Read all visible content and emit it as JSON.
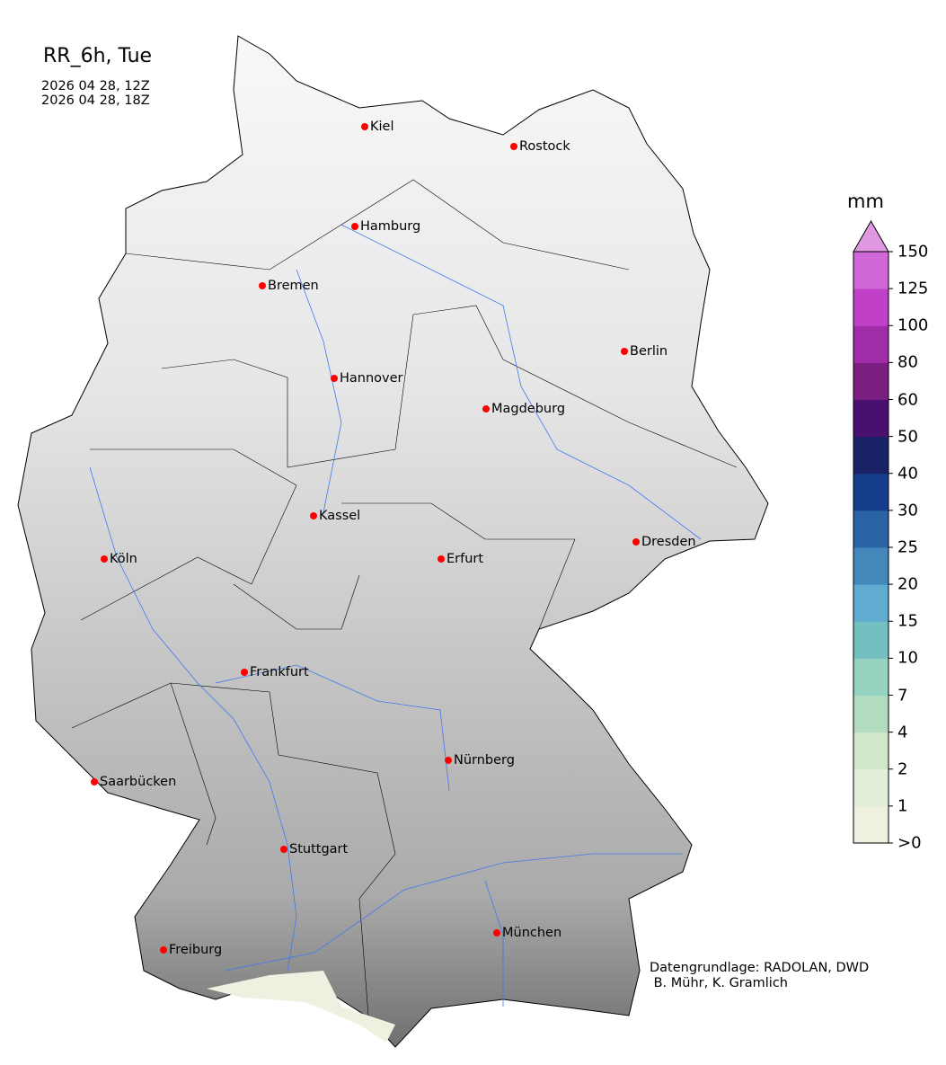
{
  "title": "RR_6h, Tue",
  "valid_start": "2026 04 28, 12Z",
  "valid_end": "2026 04 28, 18Z",
  "colorbar": {
    "unit": "mm",
    "ticks": [
      ">0",
      "1",
      "2",
      "4",
      "7",
      "10",
      "15",
      "20",
      "25",
      "30",
      "40",
      "50",
      "60",
      "80",
      "100",
      "125",
      "150"
    ],
    "colors": [
      "#f0f0e0",
      "#e2efd8",
      "#d0e8c8",
      "#b2dcc0",
      "#96d2c0",
      "#74c0c0",
      "#60acd0",
      "#4488bb",
      "#2a64a4",
      "#163c8c",
      "#1a2266",
      "#4a1070",
      "#7a1e80",
      "#a02ca8",
      "#c040c8",
      "#d068d8"
    ],
    "extend_color": "#e098e0",
    "extend": "max"
  },
  "cities": [
    {
      "name": "Kiel"
    },
    {
      "name": "Rostock"
    },
    {
      "name": "Hamburg"
    },
    {
      "name": "Bremen"
    },
    {
      "name": "Berlin"
    },
    {
      "name": "Hannover"
    },
    {
      "name": "Magdeburg"
    },
    {
      "name": "Kassel"
    },
    {
      "name": "Köln"
    },
    {
      "name": "Erfurt"
    },
    {
      "name": "Dresden"
    },
    {
      "name": "Frankfurt"
    },
    {
      "name": "Nürnberg"
    },
    {
      "name": "Saarbücken"
    },
    {
      "name": "Stuttgart"
    },
    {
      "name": "Freiburg"
    },
    {
      "name": "München"
    }
  ],
  "city_marker_color": "#ff0000",
  "river_color": "#4477ee",
  "credit_line1": "Datengrundlage: RADOLAN, DWD",
  "credit_line2": " B. Mühr, K. Gramlich"
}
